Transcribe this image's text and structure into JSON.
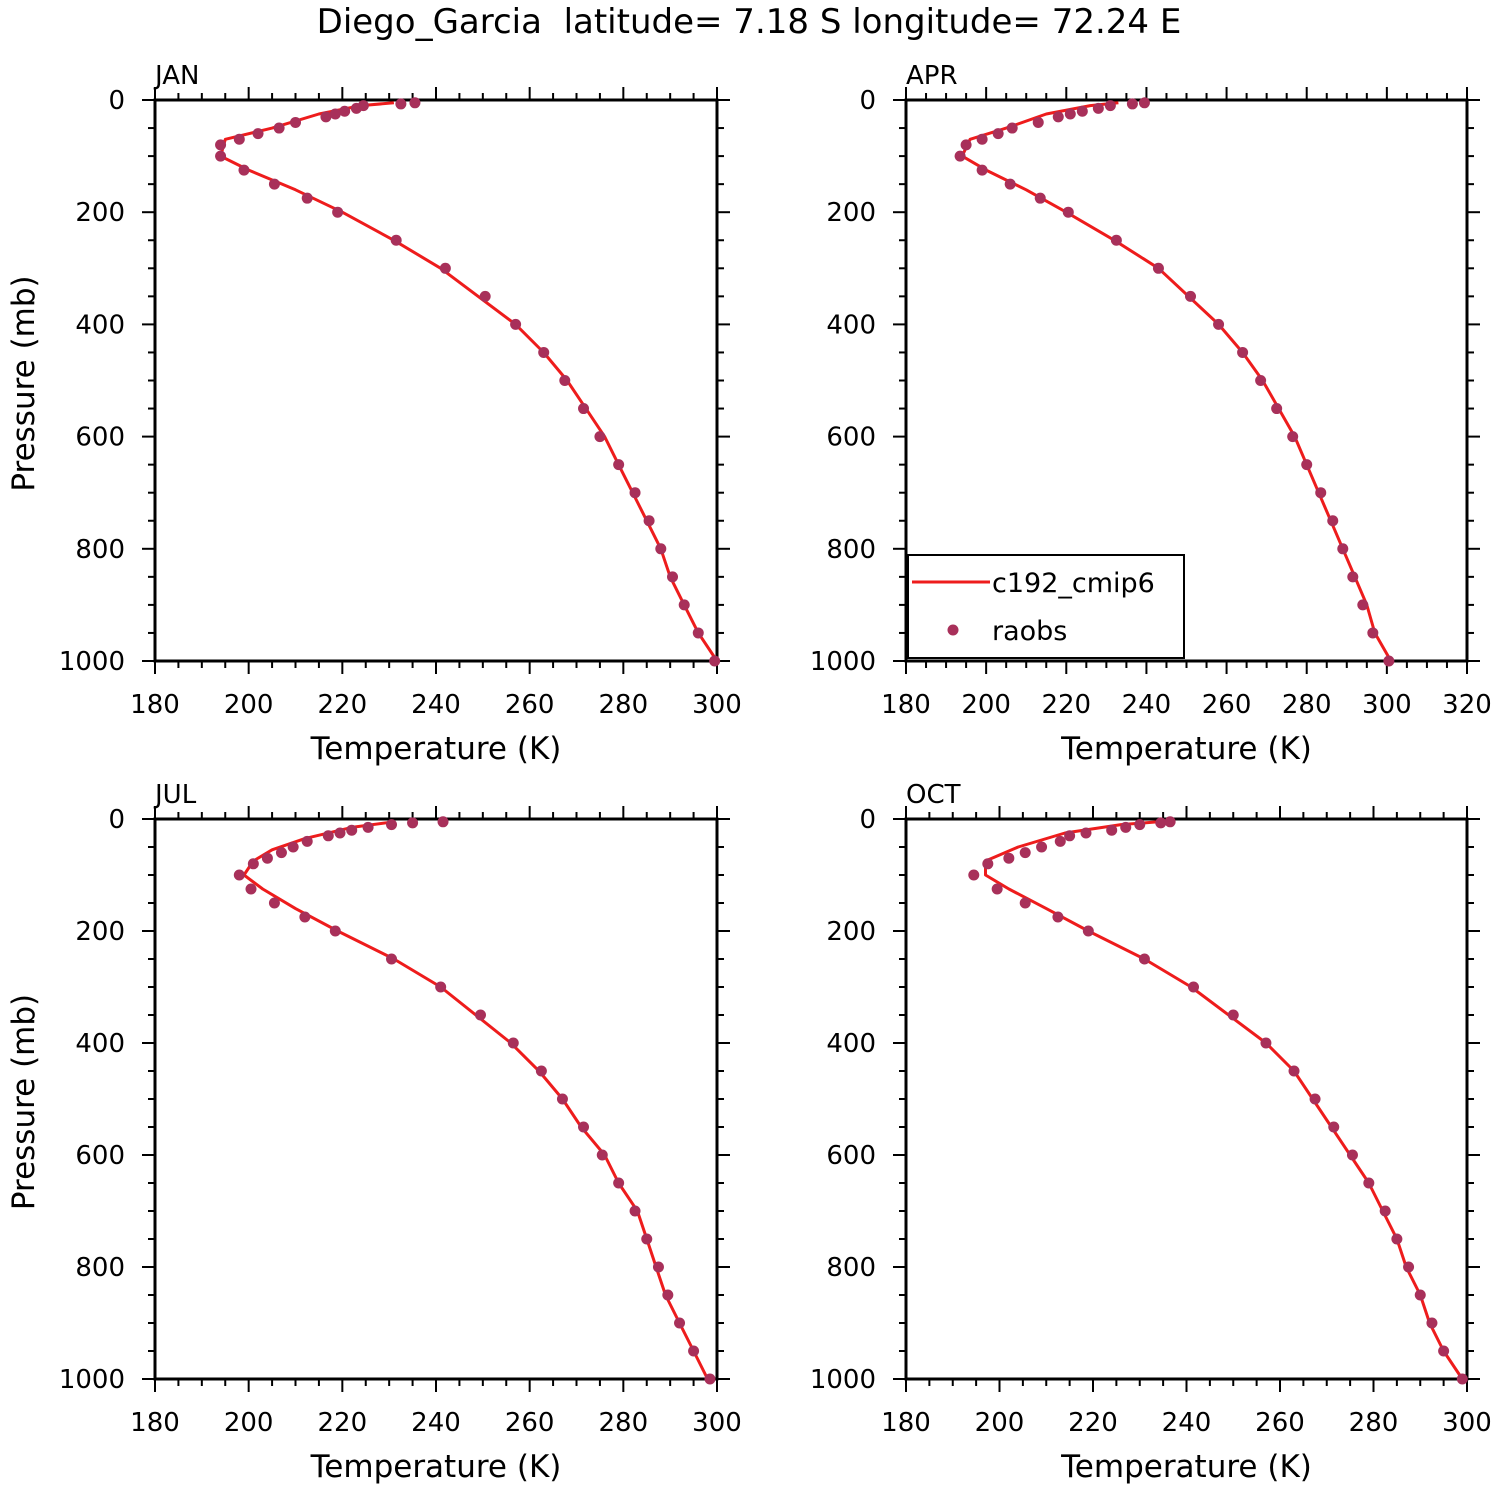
{
  "figure_title": "Diego_Garcia  latitude= 7.18 S longitude= 72.24 E",
  "colors": {
    "model_line": "#ee1c1c",
    "obs_dot": "#a8305a",
    "axis": "#000000"
  },
  "legend": {
    "model_label": "c192_cmip6",
    "obs_label": "raobs"
  },
  "chart_data": [
    {
      "type": "line",
      "panel": "JAN",
      "title": "JAN",
      "xlabel": "Temperature (K)",
      "ylabel": "Pressure (mb)",
      "xlim": [
        180,
        300
      ],
      "ylim": [
        1000,
        0
      ],
      "xticks": [
        "180",
        "200",
        "220",
        "240",
        "260",
        "280",
        "300"
      ],
      "yticks": [
        "0",
        "200",
        "400",
        "600",
        "800",
        "1000"
      ],
      "legend_visible": false,
      "series": [
        {
          "name": "c192_cmip6",
          "kind": "line",
          "x": [
            231,
            224,
            215,
            205,
            195,
            194,
            200,
            210,
            220,
            231,
            241,
            257,
            263,
            268,
            272,
            276,
            279,
            282,
            285,
            288,
            290,
            293,
            296,
            300
          ],
          "y": [
            5,
            10,
            25,
            50,
            70,
            100,
            125,
            160,
            200,
            250,
            300,
            400,
            450,
            500,
            550,
            600,
            650,
            700,
            750,
            800,
            850,
            900,
            950,
            1000
          ]
        },
        {
          "name": "raobs",
          "kind": "scatter",
          "x": [
            235.5,
            232.5,
            224.5,
            223,
            220.5,
            218.5,
            216.5,
            210,
            206.5,
            202,
            198,
            194,
            194,
            199,
            205.5,
            212.5,
            219,
            231.5,
            242,
            250.5,
            257,
            263,
            267.5,
            271.5,
            275,
            279,
            282.5,
            285.5,
            288,
            290.5,
            293,
            296,
            299.5
          ],
          "y": [
            5,
            7,
            10,
            15,
            20,
            25,
            30,
            40,
            50,
            60,
            70,
            80,
            100,
            125,
            150,
            175,
            200,
            250,
            300,
            350,
            400,
            450,
            500,
            550,
            600,
            650,
            700,
            750,
            800,
            850,
            900,
            950,
            1000
          ]
        }
      ]
    },
    {
      "type": "line",
      "panel": "APR",
      "title": "APR",
      "xlabel": "Temperature (K)",
      "ylabel": "",
      "xlim": [
        180,
        320
      ],
      "ylim": [
        1000,
        0
      ],
      "xticks": [
        "180",
        "200",
        "220",
        "240",
        "260",
        "280",
        "300",
        "320"
      ],
      "yticks": [
        "0",
        "200",
        "400",
        "600",
        "800",
        "1000"
      ],
      "legend_visible": true,
      "series": [
        {
          "name": "c192_cmip6",
          "kind": "line",
          "x": [
            233,
            226,
            215,
            205,
            196,
            194,
            200,
            210,
            220,
            232,
            243,
            258,
            264,
            269,
            273,
            277,
            280,
            283,
            286,
            289,
            292,
            295,
            297,
            301
          ],
          "y": [
            5,
            10,
            25,
            50,
            70,
            100,
            125,
            160,
            200,
            250,
            300,
            400,
            450,
            500,
            550,
            600,
            650,
            700,
            750,
            800,
            850,
            900,
            950,
            1000
          ]
        },
        {
          "name": "raobs",
          "kind": "scatter",
          "x": [
            239.5,
            236.5,
            231,
            228,
            224,
            221,
            218,
            213,
            206.5,
            203,
            199,
            195,
            193.5,
            199,
            206,
            213.5,
            220.5,
            232.5,
            243,
            251,
            258,
            264,
            268.5,
            272.5,
            276.5,
            280,
            283.5,
            286.5,
            289,
            291.5,
            294,
            296.5,
            300.5
          ],
          "y": [
            5,
            7,
            10,
            15,
            20,
            25,
            30,
            40,
            50,
            60,
            70,
            80,
            100,
            125,
            150,
            175,
            200,
            250,
            300,
            350,
            400,
            450,
            500,
            550,
            600,
            650,
            700,
            750,
            800,
            850,
            900,
            950,
            1000
          ]
        }
      ]
    },
    {
      "type": "line",
      "panel": "JUL",
      "title": "JUL",
      "xlabel": "Temperature (K)",
      "ylabel": "Pressure (mb)",
      "xlim": [
        180,
        300
      ],
      "ylim": [
        1000,
        0
      ],
      "xticks": [
        "180",
        "200",
        "220",
        "240",
        "260",
        "280",
        "300"
      ],
      "yticks": [
        "0",
        "200",
        "400",
        "600",
        "800",
        "1000"
      ],
      "legend_visible": false,
      "series": [
        {
          "name": "c192_cmip6",
          "kind": "line",
          "x": [
            231,
            222,
            212,
            205,
            201,
            199,
            203,
            210,
            219,
            231,
            241,
            256,
            262,
            267,
            271,
            276,
            279,
            283,
            285,
            287,
            289,
            292,
            295,
            298
          ],
          "y": [
            5,
            15,
            35,
            55,
            75,
            100,
            125,
            160,
            200,
            250,
            300,
            400,
            450,
            500,
            550,
            600,
            650,
            700,
            750,
            800,
            850,
            900,
            950,
            1000
          ]
        },
        {
          "name": "raobs",
          "kind": "scatter",
          "x": [
            241.5,
            235,
            230.5,
            225.5,
            222,
            219.5,
            217,
            212.5,
            209.5,
            207,
            204,
            201,
            198,
            200.5,
            205.5,
            212,
            218.5,
            230.5,
            241,
            249.5,
            256.5,
            262.5,
            267,
            271.5,
            275.5,
            279,
            282.5,
            285,
            287.5,
            289.5,
            292,
            295,
            298.5
          ],
          "y": [
            5,
            7,
            10,
            15,
            20,
            25,
            30,
            40,
            50,
            60,
            70,
            80,
            100,
            125,
            150,
            175,
            200,
            250,
            300,
            350,
            400,
            450,
            500,
            550,
            600,
            650,
            700,
            750,
            800,
            850,
            900,
            950,
            1000
          ]
        }
      ]
    },
    {
      "type": "line",
      "panel": "OCT",
      "title": "OCT",
      "xlabel": "Temperature (K)",
      "ylabel": "",
      "xlim": [
        180,
        300
      ],
      "ylim": [
        1000,
        0
      ],
      "xticks": [
        "180",
        "200",
        "220",
        "240",
        "260",
        "280",
        "300"
      ],
      "yticks": [
        "0",
        "200",
        "400",
        "600",
        "800",
        "1000"
      ],
      "legend_visible": false,
      "series": [
        {
          "name": "c192_cmip6",
          "kind": "line",
          "x": [
            234,
            226,
            214,
            204,
            197,
            197,
            202,
            210,
            219,
            231,
            241,
            257,
            263,
            267,
            271,
            275,
            279,
            282,
            285,
            287,
            290,
            292,
            295,
            299
          ],
          "y": [
            5,
            10,
            25,
            50,
            75,
            100,
            125,
            160,
            200,
            250,
            300,
            400,
            450,
            500,
            550,
            600,
            650,
            700,
            750,
            800,
            850,
            900,
            950,
            1000
          ]
        },
        {
          "name": "raobs",
          "kind": "scatter",
          "x": [
            236.5,
            234.5,
            230,
            227,
            224,
            218.5,
            215,
            213,
            209,
            205.5,
            202,
            197.5,
            194.5,
            199.5,
            205.5,
            212.5,
            219,
            231,
            241.5,
            250,
            257,
            263,
            267.5,
            271.5,
            275.5,
            279,
            282.5,
            285,
            287.5,
            290,
            292.5,
            295,
            299
          ],
          "y": [
            5,
            7,
            10,
            15,
            20,
            25,
            30,
            40,
            50,
            60,
            70,
            80,
            100,
            125,
            150,
            175,
            200,
            250,
            300,
            350,
            400,
            450,
            500,
            550,
            600,
            650,
            700,
            750,
            800,
            850,
            900,
            950,
            1000
          ]
        }
      ]
    }
  ]
}
